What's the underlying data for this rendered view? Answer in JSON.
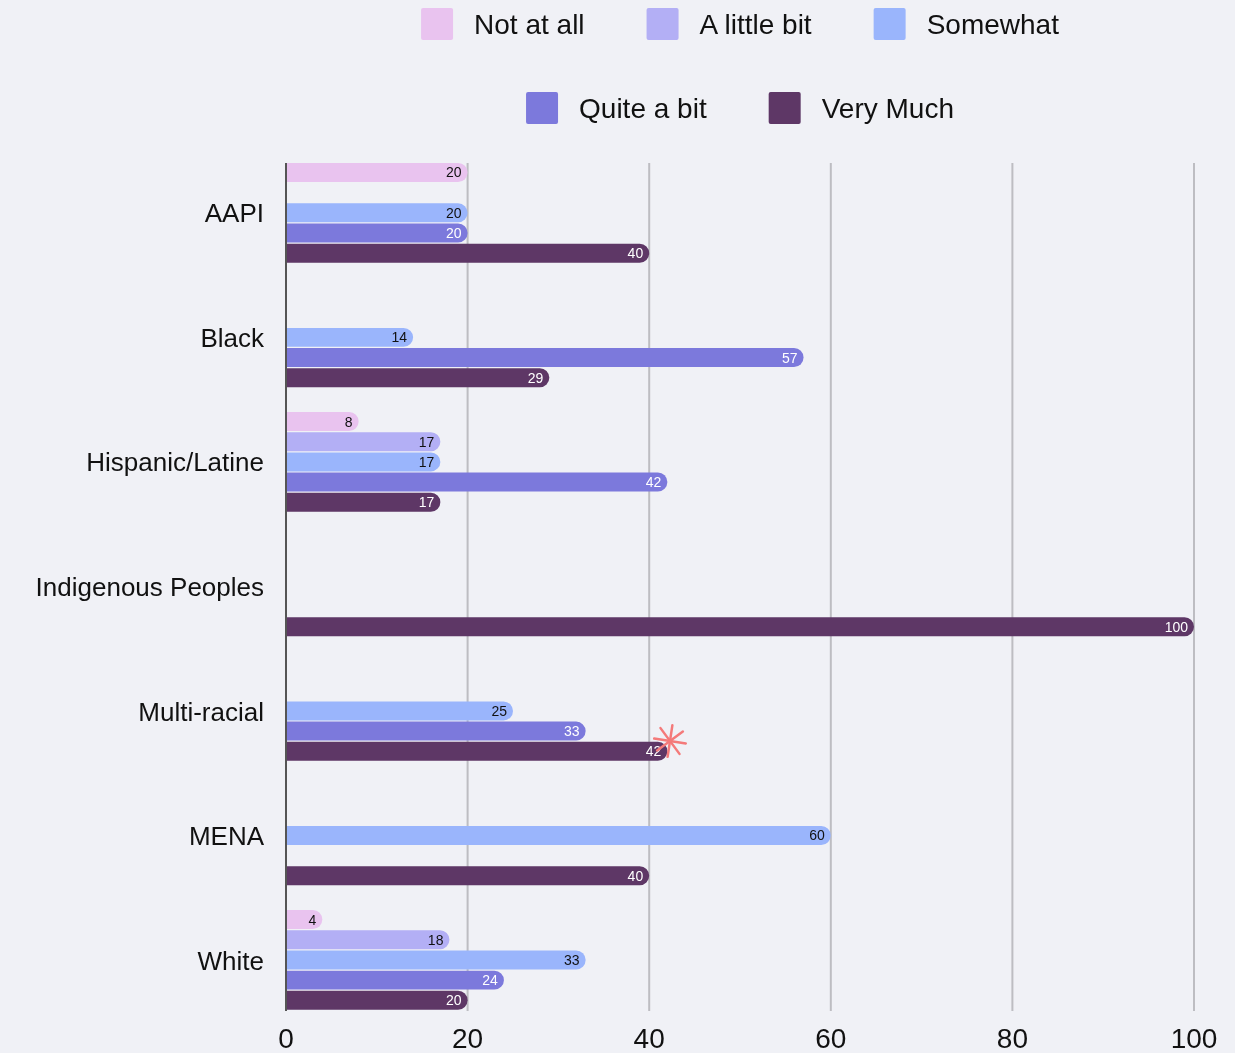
{
  "chart_data": {
    "type": "bar",
    "orientation": "horizontal",
    "categories": [
      "AAPI",
      "Black",
      "Hispanic/Latine",
      "Indigenous Peoples",
      "Multi-racial",
      "MENA",
      "White"
    ],
    "series": [
      {
        "name": "Not at all",
        "color": "#e9c3ef",
        "values": [
          20,
          null,
          8,
          null,
          null,
          null,
          4
        ]
      },
      {
        "name": "A little bit",
        "color": "#b3aff5",
        "values": [
          null,
          null,
          17,
          null,
          null,
          null,
          18
        ]
      },
      {
        "name": "Somewhat",
        "color": "#9ab5fc",
        "values": [
          20,
          14,
          17,
          null,
          25,
          60,
          33
        ]
      },
      {
        "name": "Quite a bit",
        "color": "#7c79dc",
        "values": [
          20,
          57,
          42,
          null,
          33,
          null,
          24
        ]
      },
      {
        "name": "Very Much",
        "color": "#5e3766",
        "values": [
          40,
          29,
          17,
          100,
          42,
          40,
          20
        ]
      }
    ],
    "xlim": [
      0,
      100
    ],
    "xticks": [
      0,
      20,
      40,
      60,
      80,
      100
    ],
    "grid": "x",
    "legend": "top",
    "data_labels": true
  }
}
